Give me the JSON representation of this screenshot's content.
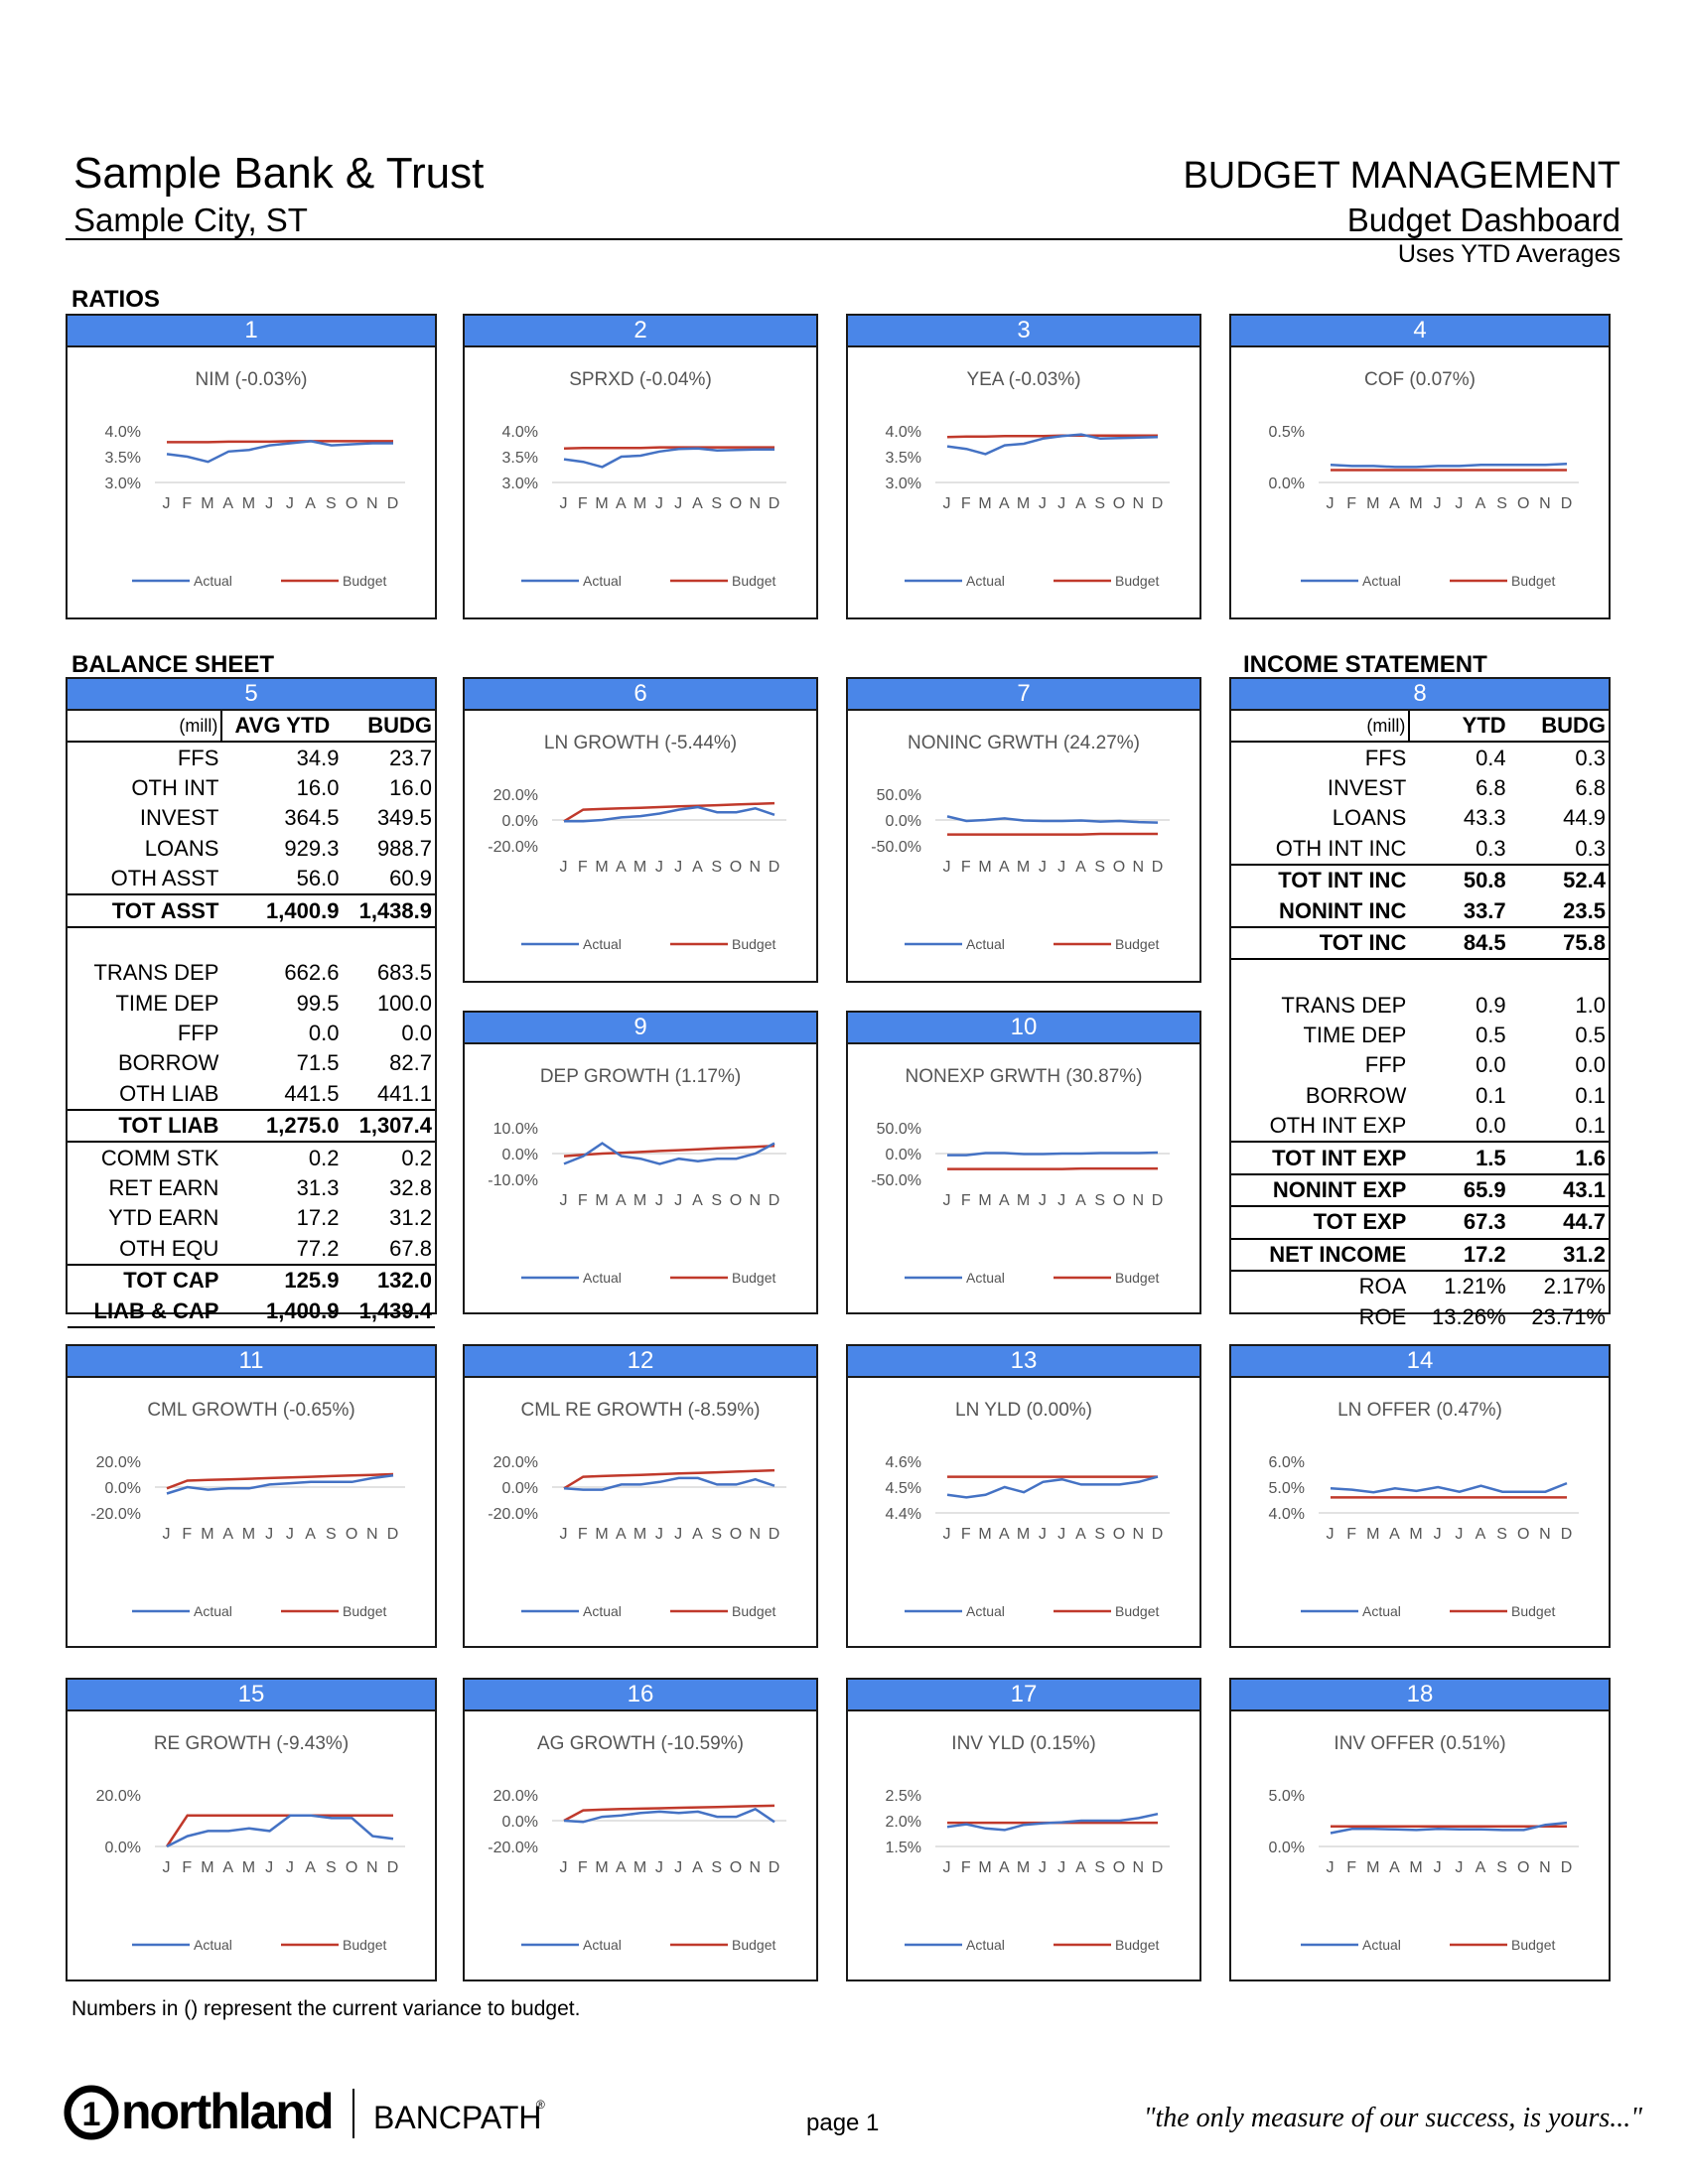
{
  "header": {
    "bank_name": "Sample Bank & Trust",
    "city": "Sample City, ST",
    "title": "BUDGET MANAGEMENT",
    "subtitle": "Budget Dashboard",
    "note": "Uses YTD Averages"
  },
  "sections": {
    "ratios": "RATIOS",
    "balance_sheet": "BALANCE SHEET",
    "income_statement": "INCOME STATEMENT"
  },
  "months": [
    "J",
    "F",
    "M",
    "A",
    "M",
    "J",
    "J",
    "A",
    "S",
    "O",
    "N",
    "D"
  ],
  "legend": {
    "actual": "Actual",
    "budget": "Budget"
  },
  "colors": {
    "actual": "#4472c4",
    "budget": "#c0392b",
    "header_blue": "#4a86e8"
  },
  "balance_sheet": {
    "number": "5",
    "unit": "(mill)",
    "col_ytd": "AVG YTD",
    "col_budg": "BUDG",
    "rows": [
      {
        "label": "FFS",
        "ytd": "34.9",
        "budg": "23.7"
      },
      {
        "label": "OTH INT",
        "ytd": "16.0",
        "budg": "16.0"
      },
      {
        "label": "INVEST",
        "ytd": "364.5",
        "budg": "349.5"
      },
      {
        "label": "LOANS",
        "ytd": "929.3",
        "budg": "988.7"
      },
      {
        "label": "OTH ASST",
        "ytd": "56.0",
        "budg": "60.9"
      },
      {
        "label": "TOT ASST",
        "ytd": "1,400.9",
        "budg": "1,438.9"
      },
      {
        "label": "",
        "ytd": "",
        "budg": ""
      },
      {
        "label": "TRANS DEP",
        "ytd": "662.6",
        "budg": "683.5"
      },
      {
        "label": "TIME DEP",
        "ytd": "99.5",
        "budg": "100.0"
      },
      {
        "label": "FFP",
        "ytd": "0.0",
        "budg": "0.0"
      },
      {
        "label": "BORROW",
        "ytd": "71.5",
        "budg": "82.7"
      },
      {
        "label": "OTH LIAB",
        "ytd": "441.5",
        "budg": "441.1"
      },
      {
        "label": "TOT LIAB",
        "ytd": "1,275.0",
        "budg": "1,307.4"
      },
      {
        "label": "COMM STK",
        "ytd": "0.2",
        "budg": "0.2"
      },
      {
        "label": "RET EARN",
        "ytd": "31.3",
        "budg": "32.8"
      },
      {
        "label": "YTD EARN",
        "ytd": "17.2",
        "budg": "31.2"
      },
      {
        "label": "OTH EQU",
        "ytd": "77.2",
        "budg": "67.8"
      },
      {
        "label": "TOT CAP",
        "ytd": "125.9",
        "budg": "132.0"
      },
      {
        "label": "LIAB & CAP",
        "ytd": "1,400.9",
        "budg": "1,439.4"
      }
    ]
  },
  "income_statement": {
    "number": "8",
    "unit": "(mill)",
    "col_ytd": "YTD",
    "col_budg": "BUDG",
    "rows": [
      {
        "label": "FFS",
        "ytd": "0.4",
        "budg": "0.3"
      },
      {
        "label": "INVEST",
        "ytd": "6.8",
        "budg": "6.8"
      },
      {
        "label": "LOANS",
        "ytd": "43.3",
        "budg": "44.9"
      },
      {
        "label": "OTH INT INC",
        "ytd": "0.3",
        "budg": "0.3"
      },
      {
        "label": "TOT INT INC",
        "ytd": "50.8",
        "budg": "52.4"
      },
      {
        "label": "NONINT INC",
        "ytd": "33.7",
        "budg": "23.5"
      },
      {
        "label": "TOT INC",
        "ytd": "84.5",
        "budg": "75.8"
      },
      {
        "label": "",
        "ytd": "",
        "budg": ""
      },
      {
        "label": "TRANS DEP",
        "ytd": "0.9",
        "budg": "1.0"
      },
      {
        "label": "TIME DEP",
        "ytd": "0.5",
        "budg": "0.5"
      },
      {
        "label": "FFP",
        "ytd": "0.0",
        "budg": "0.0"
      },
      {
        "label": "BORROW",
        "ytd": "0.1",
        "budg": "0.1"
      },
      {
        "label": "OTH INT EXP",
        "ytd": "0.0",
        "budg": "0.1"
      },
      {
        "label": "TOT INT EXP",
        "ytd": "1.5",
        "budg": "1.6"
      },
      {
        "label": "NONINT EXP",
        "ytd": "65.9",
        "budg": "43.1"
      },
      {
        "label": "TOT EXP",
        "ytd": "67.3",
        "budg": "44.7"
      },
      {
        "label": "NET INCOME",
        "ytd": "17.2",
        "budg": "31.2"
      },
      {
        "label": "ROA",
        "ytd": "1.21%",
        "budg": "2.17%"
      },
      {
        "label": "ROE",
        "ytd": "13.26%",
        "budg": "23.71%"
      }
    ]
  },
  "chart_data": [
    {
      "id": "1",
      "type": "line",
      "title": "NIM (-0.03%)",
      "yticks": [
        "4.0%",
        "3.5%",
        "3.0%"
      ],
      "ylim": [
        3.0,
        4.0
      ],
      "series": [
        {
          "name": "Actual",
          "values": [
            3.55,
            3.5,
            3.4,
            3.6,
            3.63,
            3.72,
            3.76,
            3.8,
            3.72,
            3.74,
            3.76,
            3.76
          ]
        },
        {
          "name": "Budget",
          "values": [
            3.78,
            3.78,
            3.78,
            3.79,
            3.79,
            3.79,
            3.8,
            3.8,
            3.8,
            3.8,
            3.8,
            3.8
          ]
        }
      ]
    },
    {
      "id": "2",
      "type": "line",
      "title": "SPRXD (-0.04%)",
      "yticks": [
        "4.0%",
        "3.5%",
        "3.0%"
      ],
      "ylim": [
        3.0,
        4.0
      ],
      "series": [
        {
          "name": "Actual",
          "values": [
            3.45,
            3.4,
            3.3,
            3.5,
            3.52,
            3.6,
            3.65,
            3.66,
            3.62,
            3.63,
            3.64,
            3.64
          ]
        },
        {
          "name": "Budget",
          "values": [
            3.66,
            3.67,
            3.67,
            3.67,
            3.67,
            3.68,
            3.68,
            3.68,
            3.68,
            3.68,
            3.68,
            3.68
          ]
        }
      ]
    },
    {
      "id": "3",
      "type": "line",
      "title": "YEA (-0.03%)",
      "yticks": [
        "4.0%",
        "3.5%",
        "3.0%"
      ],
      "ylim": [
        3.0,
        4.0
      ],
      "series": [
        {
          "name": "Actual",
          "values": [
            3.7,
            3.65,
            3.55,
            3.72,
            3.75,
            3.85,
            3.9,
            3.93,
            3.85,
            3.86,
            3.87,
            3.88
          ]
        },
        {
          "name": "Budget",
          "values": [
            3.88,
            3.89,
            3.89,
            3.9,
            3.9,
            3.9,
            3.91,
            3.91,
            3.91,
            3.91,
            3.91,
            3.91
          ]
        }
      ]
    },
    {
      "id": "4",
      "type": "line",
      "title": "COF (0.07%)",
      "yticks": [
        "0.5%",
        "0.0%"
      ],
      "ylim": [
        0.0,
        0.5
      ],
      "series": [
        {
          "name": "Actual",
          "values": [
            0.17,
            0.16,
            0.16,
            0.15,
            0.15,
            0.16,
            0.16,
            0.17,
            0.17,
            0.17,
            0.17,
            0.18
          ]
        },
        {
          "name": "Budget",
          "values": [
            0.12,
            0.12,
            0.12,
            0.12,
            0.12,
            0.12,
            0.12,
            0.12,
            0.12,
            0.12,
            0.12,
            0.12
          ]
        }
      ]
    },
    {
      "id": "6",
      "type": "line",
      "title": "LN GROWTH (-5.44%)",
      "yticks": [
        "20.0%",
        "0.0%",
        "-20.0%"
      ],
      "ylim": [
        -20,
        20
      ],
      "series": [
        {
          "name": "Actual",
          "values": [
            -1,
            -1,
            0,
            2,
            3,
            5,
            8,
            10,
            6,
            6,
            9,
            4
          ]
        },
        {
          "name": "Budget",
          "values": [
            -1,
            8,
            8.5,
            9,
            9.5,
            10,
            10.5,
            11,
            11.5,
            12,
            12.5,
            13
          ]
        }
      ]
    },
    {
      "id": "7",
      "type": "line",
      "title": "NONINC GRWTH (24.27%)",
      "yticks": [
        "50.0%",
        "0.0%",
        "-50.0%"
      ],
      "ylim": [
        -50,
        50
      ],
      "series": [
        {
          "name": "Actual",
          "values": [
            7,
            -2,
            0,
            3,
            -1,
            -2,
            -2,
            -1,
            -3,
            -2,
            -4,
            -5
          ]
        },
        {
          "name": "Budget",
          "values": [
            -28,
            -28,
            -28,
            -28,
            -28,
            -28,
            -28,
            -28,
            -27,
            -27,
            -27,
            -27
          ]
        }
      ]
    },
    {
      "id": "9",
      "type": "line",
      "title": "DEP GROWTH (1.17%)",
      "yticks": [
        "10.0%",
        "0.0%",
        "-10.0%"
      ],
      "ylim": [
        -10,
        10
      ],
      "series": [
        {
          "name": "Actual",
          "values": [
            -4,
            -1,
            4,
            -1,
            -2,
            -4,
            -2,
            -3,
            -2,
            -2,
            0,
            4
          ]
        },
        {
          "name": "Budget",
          "values": [
            -1,
            -0.5,
            0,
            0.3,
            0.6,
            1,
            1.3,
            1.6,
            2,
            2.3,
            2.6,
            3
          ]
        }
      ]
    },
    {
      "id": "10",
      "type": "line",
      "title": "NONEXP GRWTH (30.87%)",
      "yticks": [
        "50.0%",
        "0.0%",
        "-50.0%"
      ],
      "ylim": [
        -50,
        50
      ],
      "series": [
        {
          "name": "Actual",
          "values": [
            -3,
            -3,
            1,
            1,
            -1,
            -1,
            0,
            0,
            1,
            1,
            1,
            2
          ]
        },
        {
          "name": "Budget",
          "values": [
            -30,
            -30,
            -30,
            -30,
            -30,
            -30,
            -30,
            -29,
            -29,
            -29,
            -29,
            -29
          ]
        }
      ]
    },
    {
      "id": "11",
      "type": "line",
      "title": "CML GROWTH (-0.65%)",
      "yticks": [
        "20.0%",
        "0.0%",
        "-20.0%"
      ],
      "ylim": [
        -20,
        20
      ],
      "series": [
        {
          "name": "Actual",
          "values": [
            -5,
            0,
            -2,
            -1,
            -1,
            2,
            3,
            4,
            4,
            4,
            7,
            9
          ]
        },
        {
          "name": "Budget",
          "values": [
            -1,
            5,
            5.5,
            6,
            6.5,
            7,
            7.5,
            8,
            8.5,
            9,
            9.5,
            10
          ]
        }
      ]
    },
    {
      "id": "12",
      "type": "line",
      "title": "CML RE GROWTH (-8.59%)",
      "yticks": [
        "20.0%",
        "0.0%",
        "-20.0%"
      ],
      "ylim": [
        -20,
        20
      ],
      "series": [
        {
          "name": "Actual",
          "values": [
            -1,
            -2,
            -2,
            2,
            2,
            4,
            7,
            7,
            2,
            2,
            6,
            1
          ]
        },
        {
          "name": "Budget",
          "values": [
            -1,
            8,
            8.5,
            9,
            9.5,
            10,
            10.5,
            11,
            11.5,
            12,
            12.5,
            13
          ]
        }
      ]
    },
    {
      "id": "13",
      "type": "line",
      "title": "LN YLD (0.00%)",
      "yticks": [
        "4.6%",
        "4.5%",
        "4.4%"
      ],
      "ylim": [
        4.4,
        4.6
      ],
      "series": [
        {
          "name": "Actual",
          "values": [
            4.47,
            4.46,
            4.47,
            4.5,
            4.48,
            4.52,
            4.53,
            4.51,
            4.51,
            4.51,
            4.52,
            4.54
          ]
        },
        {
          "name": "Budget",
          "values": [
            4.54,
            4.54,
            4.54,
            4.54,
            4.54,
            4.54,
            4.54,
            4.54,
            4.54,
            4.54,
            4.54,
            4.54
          ]
        }
      ]
    },
    {
      "id": "14",
      "type": "line",
      "title": "LN OFFER (0.47%)",
      "yticks": [
        "6.0%",
        "5.0%",
        "4.0%"
      ],
      "ylim": [
        4.0,
        6.0
      ],
      "series": [
        {
          "name": "Actual",
          "values": [
            4.95,
            4.9,
            4.8,
            4.95,
            4.85,
            5.0,
            4.82,
            5.05,
            4.82,
            4.82,
            4.82,
            5.15
          ]
        },
        {
          "name": "Budget",
          "values": [
            4.6,
            4.6,
            4.6,
            4.6,
            4.6,
            4.6,
            4.6,
            4.6,
            4.6,
            4.6,
            4.6,
            4.6
          ]
        }
      ]
    },
    {
      "id": "15",
      "type": "line",
      "title": "RE GROWTH (-9.43%)",
      "yticks": [
        "20.0%",
        "0.0%"
      ],
      "ylim": [
        0,
        20
      ],
      "series": [
        {
          "name": "Actual",
          "values": [
            0,
            4,
            6,
            6,
            7,
            6,
            12,
            12,
            11,
            11,
            4,
            3
          ]
        },
        {
          "name": "Budget",
          "values": [
            0,
            12,
            12,
            12,
            12,
            12,
            12,
            12,
            12,
            12,
            12,
            12
          ]
        }
      ]
    },
    {
      "id": "16",
      "type": "line",
      "title": "AG GROWTH (-10.59%)",
      "yticks": [
        "20.0%",
        "0.0%",
        "-20.0%"
      ],
      "ylim": [
        -20,
        20
      ],
      "series": [
        {
          "name": "Actual",
          "values": [
            0,
            -1,
            3,
            4,
            6,
            7,
            6,
            7,
            3,
            3,
            9,
            -1
          ]
        },
        {
          "name": "Budget",
          "values": [
            0,
            8,
            8.5,
            9,
            9.3,
            9.6,
            10,
            10.3,
            10.6,
            11,
            11.3,
            11.6
          ]
        }
      ]
    },
    {
      "id": "17",
      "type": "line",
      "title": "INV YLD (0.15%)",
      "yticks": [
        "2.5%",
        "2.0%",
        "1.5%"
      ],
      "ylim": [
        1.5,
        2.5
      ],
      "series": [
        {
          "name": "Actual",
          "values": [
            1.88,
            1.93,
            1.85,
            1.82,
            1.92,
            1.95,
            1.97,
            2.0,
            2.0,
            2.0,
            2.05,
            2.13
          ]
        },
        {
          "name": "Budget",
          "values": [
            1.96,
            1.96,
            1.96,
            1.96,
            1.96,
            1.96,
            1.96,
            1.96,
            1.96,
            1.96,
            1.96,
            1.96
          ]
        }
      ]
    },
    {
      "id": "18",
      "type": "line",
      "title": "INV OFFER (0.51%)",
      "yticks": [
        "5.0%",
        "0.0%"
      ],
      "ylim": [
        0.0,
        5.0
      ],
      "series": [
        {
          "name": "Actual",
          "values": [
            1.3,
            1.7,
            1.7,
            1.65,
            1.6,
            1.7,
            1.65,
            1.65,
            1.6,
            1.6,
            2.1,
            2.3
          ]
        },
        {
          "name": "Budget",
          "values": [
            1.95,
            1.95,
            1.95,
            1.95,
            1.95,
            1.95,
            1.95,
            1.95,
            1.95,
            1.95,
            1.95,
            1.95
          ]
        }
      ]
    }
  ],
  "footer": {
    "note": "Numbers in () represent the current variance to budget.",
    "brand": "northland",
    "brand_circle_digit": "1",
    "partner": "BANCPATH",
    "partner_mark": "®",
    "page": "page 1",
    "tagline": "\"the only measure of our success, is yours...\""
  }
}
